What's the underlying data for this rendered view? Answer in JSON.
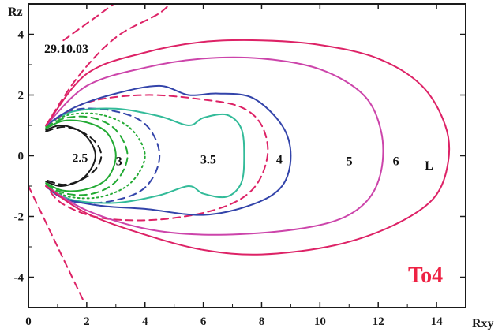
{
  "chart_data": {
    "type": "line",
    "xlabel": "Rxy",
    "ylabel": "Rz",
    "xlim": [
      0,
      15
    ],
    "ylim": [
      -5,
      5
    ],
    "xticks": [
      0,
      2,
      4,
      6,
      8,
      10,
      12,
      14
    ],
    "yticks": [
      -4,
      -2,
      0,
      2,
      4
    ],
    "xtick_labels": [
      "0",
      "2",
      "4",
      "6",
      "8",
      "10",
      "12",
      "14"
    ],
    "ytick_labels": [
      "-4",
      "-2",
      "0",
      "2",
      "4"
    ],
    "grid": false,
    "date_text": "29.10.03",
    "model_text": "To4",
    "colors": {
      "frame": "#1a1a1a",
      "black": "#1a1a1a",
      "green": "#22aa33",
      "teal": "#33bb99",
      "blue": "#3344aa",
      "magenta": "#cc44aa",
      "crimson": "#dd2266",
      "model_text": "#ee2244"
    },
    "series": [
      {
        "label": "2.5",
        "color": "black",
        "style": "solid",
        "points": [
          [
            0.6,
            0.85
          ],
          [
            1.1,
            1.0
          ],
          [
            1.7,
            0.85
          ],
          [
            2.1,
            0.5
          ],
          [
            2.3,
            0.0
          ],
          [
            2.1,
            -0.5
          ],
          [
            1.7,
            -0.85
          ],
          [
            1.1,
            -1.0
          ],
          [
            0.6,
            -0.85
          ]
        ]
      },
      {
        "label": "",
        "color": "black",
        "style": "dashed",
        "points": [
          [
            0.6,
            0.8
          ],
          [
            1.2,
            0.95
          ],
          [
            1.8,
            0.8
          ],
          [
            2.3,
            0.45
          ],
          [
            2.5,
            0.0
          ],
          [
            2.3,
            -0.45
          ],
          [
            1.8,
            -0.8
          ],
          [
            1.2,
            -0.95
          ],
          [
            0.6,
            -0.8
          ]
        ]
      },
      {
        "label": "",
        "color": "green",
        "style": "solid",
        "points": [
          [
            0.6,
            0.9
          ],
          [
            1.2,
            1.15
          ],
          [
            2.0,
            1.1
          ],
          [
            2.7,
            0.75
          ],
          [
            3.0,
            0.0
          ],
          [
            2.7,
            -0.75
          ],
          [
            2.0,
            -1.1
          ],
          [
            1.2,
            -1.15
          ],
          [
            0.6,
            -0.9
          ]
        ]
      },
      {
        "label": "",
        "color": "green",
        "style": "dashed",
        "points": [
          [
            0.6,
            0.95
          ],
          [
            1.3,
            1.25
          ],
          [
            2.2,
            1.25
          ],
          [
            3.0,
            0.85
          ],
          [
            3.4,
            0.0
          ],
          [
            3.0,
            -0.85
          ],
          [
            2.2,
            -1.25
          ],
          [
            1.3,
            -1.25
          ],
          [
            0.6,
            -0.95
          ]
        ]
      },
      {
        "label": "3",
        "color": "green",
        "style": "dotted",
        "points": [
          [
            0.6,
            1.0
          ],
          [
            1.4,
            1.35
          ],
          [
            2.5,
            1.35
          ],
          [
            3.5,
            0.9
          ],
          [
            4.0,
            0.0
          ],
          [
            3.5,
            -0.9
          ],
          [
            2.5,
            -1.35
          ],
          [
            1.4,
            -1.35
          ],
          [
            0.6,
            -1.0
          ]
        ]
      },
      {
        "label": "",
        "color": "blue",
        "style": "dashed",
        "points": [
          [
            0.6,
            1.0
          ],
          [
            1.5,
            1.5
          ],
          [
            2.8,
            1.5
          ],
          [
            4.0,
            1.05
          ],
          [
            4.5,
            0.0
          ],
          [
            4.0,
            -1.05
          ],
          [
            2.8,
            -1.5
          ],
          [
            1.5,
            -1.5
          ],
          [
            0.6,
            -1.0
          ]
        ]
      },
      {
        "label": "3.5",
        "color": "teal",
        "style": "solid",
        "points": [
          [
            0.6,
            1.0
          ],
          [
            1.5,
            1.45
          ],
          [
            3.0,
            1.55
          ],
          [
            4.5,
            1.3
          ],
          [
            5.5,
            1.0
          ],
          [
            6.0,
            1.25
          ],
          [
            6.8,
            1.35
          ],
          [
            7.3,
            0.9
          ],
          [
            7.4,
            0.0
          ],
          [
            7.3,
            -0.9
          ],
          [
            6.8,
            -1.35
          ],
          [
            6.0,
            -1.25
          ],
          [
            5.5,
            -1.0
          ],
          [
            4.5,
            -1.3
          ],
          [
            3.0,
            -1.55
          ],
          [
            1.5,
            -1.45
          ],
          [
            0.6,
            -1.0
          ]
        ]
      },
      {
        "label": "",
        "color": "crimson",
        "style": "dashed",
        "points": [
          [
            0.6,
            1.0
          ],
          [
            2.0,
            1.75
          ],
          [
            4.0,
            2.0
          ],
          [
            6.0,
            1.85
          ],
          [
            7.3,
            1.6
          ],
          [
            8.0,
            1.0
          ],
          [
            8.2,
            0.0
          ],
          [
            7.7,
            -1.1
          ],
          [
            6.5,
            -1.75
          ],
          [
            4.5,
            -2.1
          ],
          [
            2.5,
            -2.05
          ],
          [
            1.2,
            -1.6
          ],
          [
            0.6,
            -1.0
          ]
        ]
      },
      {
        "label": "4",
        "color": "blue",
        "style": "solid",
        "points": [
          [
            0.6,
            1.0
          ],
          [
            1.6,
            1.6
          ],
          [
            3.0,
            2.05
          ],
          [
            4.5,
            2.3
          ],
          [
            5.5,
            2.0
          ],
          [
            6.5,
            2.05
          ],
          [
            7.7,
            1.9
          ],
          [
            8.7,
            1.0
          ],
          [
            9.0,
            0.0
          ],
          [
            8.7,
            -1.0
          ],
          [
            7.7,
            -1.6
          ],
          [
            6.0,
            -1.95
          ],
          [
            4.0,
            -1.75
          ],
          [
            2.5,
            -1.65
          ],
          [
            1.2,
            -1.4
          ],
          [
            0.6,
            -1.0
          ]
        ]
      },
      {
        "label": "5",
        "color": "magenta",
        "style": "solid",
        "points": [
          [
            0.6,
            1.0
          ],
          [
            2.0,
            2.3
          ],
          [
            4.0,
            2.9
          ],
          [
            6.0,
            3.2
          ],
          [
            8.0,
            3.2
          ],
          [
            10.0,
            2.85
          ],
          [
            11.5,
            2.0
          ],
          [
            12.1,
            0.8
          ],
          [
            12.1,
            -0.5
          ],
          [
            11.6,
            -1.5
          ],
          [
            10.5,
            -2.15
          ],
          [
            8.5,
            -2.5
          ],
          [
            6.0,
            -2.6
          ],
          [
            4.0,
            -2.4
          ],
          [
            2.0,
            -1.8
          ],
          [
            0.6,
            -1.0
          ]
        ]
      },
      {
        "label": "6",
        "color": "crimson",
        "style": "solid",
        "points": [
          [
            0.6,
            1.0
          ],
          [
            2.0,
            2.7
          ],
          [
            4.0,
            3.4
          ],
          [
            6.0,
            3.75
          ],
          [
            8.0,
            3.8
          ],
          [
            10.0,
            3.65
          ],
          [
            12.0,
            3.2
          ],
          [
            13.5,
            2.3
          ],
          [
            14.3,
            1.0
          ],
          [
            14.4,
            -0.2
          ],
          [
            13.9,
            -1.4
          ],
          [
            12.5,
            -2.3
          ],
          [
            10.5,
            -2.95
          ],
          [
            8.0,
            -3.25
          ],
          [
            6.0,
            -3.1
          ],
          [
            4.0,
            -2.6
          ],
          [
            2.0,
            -1.9
          ],
          [
            0.6,
            -1.0
          ]
        ]
      },
      {
        "label": "",
        "color": "crimson",
        "style": "dashed",
        "points": [
          [
            1.2,
            3.8
          ],
          [
            2.5,
            4.7
          ],
          [
            3.2,
            5.2
          ]
        ]
      },
      {
        "label": "",
        "color": "crimson",
        "style": "dashed",
        "points": [
          [
            0.6,
            1.0
          ],
          [
            1.7,
            2.6
          ],
          [
            3.0,
            3.9
          ],
          [
            4.5,
            4.7
          ],
          [
            5.0,
            5.2
          ]
        ]
      },
      {
        "label": "",
        "color": "crimson",
        "style": "dashed",
        "points": [
          [
            0.0,
            -1.0
          ],
          [
            0.6,
            -2.2
          ],
          [
            1.3,
            -3.6
          ],
          [
            1.9,
            -4.8
          ]
        ]
      }
    ],
    "labels": [
      {
        "text": "2.5",
        "x": 1.5,
        "y": -0.05
      },
      {
        "text": "3",
        "x": 3.0,
        "y": -0.15
      },
      {
        "text": "3.5",
        "x": 5.9,
        "y": -0.1
      },
      {
        "text": "4",
        "x": 8.5,
        "y": -0.1
      },
      {
        "text": "5",
        "x": 10.9,
        "y": -0.15
      },
      {
        "text": "6",
        "x": 12.5,
        "y": -0.15
      },
      {
        "text": "L",
        "x": 13.6,
        "y": -0.3
      }
    ]
  }
}
